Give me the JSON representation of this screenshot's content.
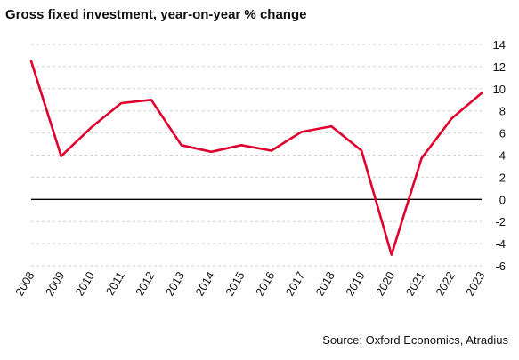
{
  "chart_data": {
    "type": "line",
    "title": "Gross fixed investment, year-on-year % change",
    "source": "Source: Oxford Economics, Atradius",
    "xlabel": "",
    "ylabel": "",
    "categories": [
      "2008",
      "2009",
      "2010",
      "2011",
      "2012",
      "2013",
      "2014",
      "2015",
      "2016",
      "2017",
      "2018",
      "2019",
      "2020",
      "2021",
      "2022",
      "2023"
    ],
    "series": [
      {
        "values": [
          12.5,
          3.9,
          6.5,
          8.7,
          9.0,
          4.9,
          4.3,
          4.9,
          4.4,
          6.1,
          6.6,
          4.4,
          -5.0,
          3.7,
          7.3,
          9.6
        ],
        "color": "#e0002d"
      }
    ],
    "ylim": [
      -6,
      14
    ],
    "yticks": [
      14,
      12,
      10,
      8,
      6,
      4,
      2,
      0,
      -2,
      -4,
      -6
    ],
    "grid": true,
    "legend": "none"
  }
}
